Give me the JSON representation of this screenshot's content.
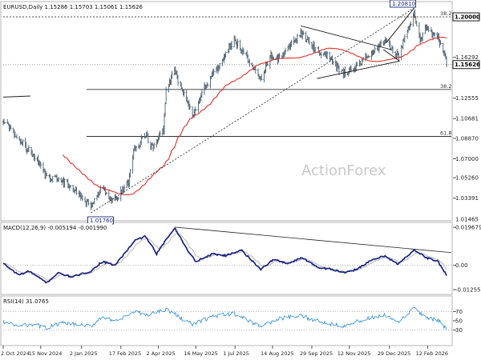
{
  "chart_data": [
    {
      "type": "ohlc",
      "title": "EURUSD,Daily  1.15286 1.15703 1.15061 1.15626",
      "watermark": "ActionForex",
      "y_ticks": [
        1.2,
        1.16292,
        1.12555,
        1.10681,
        1.0887,
        1.07,
        1.0526,
        1.03391
      ],
      "y_tick_labels": [
        "1.20000",
        "1.16292",
        "1.12555",
        "1.10681",
        "1.08870",
        "1.07000",
        "1.05260",
        "1.03391"
      ],
      "ylim": [
        1.01465,
        1.2125
      ],
      "last_price": 1.15626,
      "last_price_label": "1.15626",
      "bottom_tick_label": "1.01465",
      "price_boxes": [
        {
          "label": "1.20810",
          "value": 1.2081,
          "date": "2026-01-27"
        },
        {
          "label": "1.01760",
          "value": 1.0176,
          "date": "2025-01-13"
        }
      ],
      "fib_levels": [
        {
          "label": "38.2",
          "value": 1.2
        },
        {
          "label": "38.2",
          "value": 1.1335
        },
        {
          "label": "61.8",
          "value": 1.0905
        }
      ],
      "anchor_points": [
        {
          "date": "2024-10-02",
          "close": 1.106
        },
        {
          "date": "2024-10-20",
          "close": 1.088
        },
        {
          "date": "2024-11-10",
          "close": 1.07
        },
        {
          "date": "2024-11-20",
          "close": 1.055
        },
        {
          "date": "2024-12-10",
          "close": 1.051
        },
        {
          "date": "2024-12-28",
          "close": 1.039
        },
        {
          "date": "2025-01-13",
          "close": 1.026
        },
        {
          "date": "2025-01-26",
          "close": 1.045
        },
        {
          "date": "2025-02-03",
          "close": 1.032
        },
        {
          "date": "2025-02-10",
          "close": 1.033
        },
        {
          "date": "2025-02-26",
          "close": 1.049
        },
        {
          "date": "2025-03-05",
          "close": 1.079
        },
        {
          "date": "2025-03-18",
          "close": 1.092
        },
        {
          "date": "2025-03-27",
          "close": 1.08
        },
        {
          "date": "2025-04-08",
          "close": 1.096
        },
        {
          "date": "2025-04-11",
          "close": 1.135
        },
        {
          "date": "2025-04-21",
          "close": 1.15
        },
        {
          "date": "2025-05-01",
          "close": 1.13
        },
        {
          "date": "2025-05-12",
          "close": 1.11
        },
        {
          "date": "2025-05-26",
          "close": 1.135
        },
        {
          "date": "2025-06-12",
          "close": 1.155
        },
        {
          "date": "2025-06-30",
          "close": 1.179
        },
        {
          "date": "2025-07-10",
          "close": 1.17
        },
        {
          "date": "2025-07-31",
          "close": 1.142
        },
        {
          "date": "2025-08-12",
          "close": 1.165
        },
        {
          "date": "2025-08-22",
          "close": 1.162
        },
        {
          "date": "2025-09-16",
          "close": 1.185
        },
        {
          "date": "2025-10-01",
          "close": 1.172
        },
        {
          "date": "2025-10-16",
          "close": 1.165
        },
        {
          "date": "2025-11-05",
          "close": 1.148
        },
        {
          "date": "2025-11-20",
          "close": 1.153
        },
        {
          "date": "2025-12-01",
          "close": 1.162
        },
        {
          "date": "2025-12-24",
          "close": 1.178
        },
        {
          "date": "2026-01-08",
          "close": 1.164
        },
        {
          "date": "2026-01-27",
          "close": 1.204
        },
        {
          "date": "2026-02-03",
          "close": 1.18
        },
        {
          "date": "2026-02-10",
          "close": 1.19
        },
        {
          "date": "2026-02-16",
          "close": 1.185
        },
        {
          "date": "2026-02-24",
          "close": 1.18
        },
        {
          "date": "2026-03-02",
          "close": 1.17
        },
        {
          "date": "2026-03-06",
          "close": 1.1563
        }
      ],
      "series": [
        {
          "name": "EURUSD",
          "color": "#4a5f70"
        },
        {
          "color": "#e0302a"
        }
      ],
      "overlays": {
        "channel_color": "#111111",
        "trendline_color": "#222222"
      },
      "x_tick_labels": [
        {
          "label": "2 Oct 2024",
          "date": "2024-10-02"
        },
        {
          "label": "15 Nov 2024",
          "date": "2024-11-15"
        },
        {
          "label": "2 Jan 2025",
          "date": "2025-01-02"
        },
        {
          "label": "17 Feb 2025",
          "date": "2025-02-17"
        },
        {
          "label": "2 Apr 2025",
          "date": "2025-04-02"
        },
        {
          "label": "16 May 2025",
          "date": "2025-05-16"
        },
        {
          "label": "1 Jul 2025",
          "date": "2025-07-01"
        },
        {
          "label": "14 Aug 2025",
          "date": "2025-08-14"
        },
        {
          "label": "29 Sep 2025",
          "date": "2025-09-29"
        },
        {
          "label": "12 Nov 2025",
          "date": "2025-11-12"
        },
        {
          "label": "29 Dec 2025",
          "date": "2025-12-29"
        },
        {
          "label": "12 Feb 2026",
          "date": "2026-02-12"
        }
      ]
    },
    {
      "type": "line",
      "title": "MACD(12,26,9) -0.005194 -0.001990",
      "ylim": [
        -0.0142,
        0.0214
      ],
      "y_ticks": [
        0.019679,
        0.0,
        -0.012552
      ],
      "y_tick_labels": [
        "0.019679",
        "0.00",
        "-0.012552"
      ],
      "anchor_points": [
        {
          "date": "2024-10-02",
          "macd": 0.001
        },
        {
          "date": "2024-10-20",
          "macd": -0.005
        },
        {
          "date": "2024-11-01",
          "macd": -0.003
        },
        {
          "date": "2024-11-22",
          "macd": -0.009
        },
        {
          "date": "2024-12-05",
          "macd": -0.004
        },
        {
          "date": "2024-12-22",
          "macd": -0.006
        },
        {
          "date": "2025-01-13",
          "macd": -0.003
        },
        {
          "date": "2025-01-26",
          "macd": 0.002
        },
        {
          "date": "2025-02-10",
          "macd": 0.0
        },
        {
          "date": "2025-03-06",
          "macd": 0.013
        },
        {
          "date": "2025-03-18",
          "macd": 0.015
        },
        {
          "date": "2025-03-31",
          "macd": 0.006
        },
        {
          "date": "2025-04-21",
          "macd": 0.0196
        },
        {
          "date": "2025-05-06",
          "macd": 0.008
        },
        {
          "date": "2025-05-16",
          "macd": 0.002
        },
        {
          "date": "2025-06-05",
          "macd": 0.006
        },
        {
          "date": "2025-06-20",
          "macd": 0.005
        },
        {
          "date": "2025-07-08",
          "macd": 0.008
        },
        {
          "date": "2025-07-31",
          "macd": -0.002
        },
        {
          "date": "2025-08-15",
          "macd": 0.003
        },
        {
          "date": "2025-09-01",
          "macd": 0.001
        },
        {
          "date": "2025-09-18",
          "macd": 0.004
        },
        {
          "date": "2025-10-06",
          "macd": -0.001
        },
        {
          "date": "2025-10-22",
          "macd": -0.002
        },
        {
          "date": "2025-11-07",
          "macd": -0.004
        },
        {
          "date": "2025-11-20",
          "macd": -0.002
        },
        {
          "date": "2025-12-10",
          "macd": 0.003
        },
        {
          "date": "2025-12-24",
          "macd": 0.005
        },
        {
          "date": "2026-01-08",
          "macd": 0.0005
        },
        {
          "date": "2026-01-27",
          "macd": 0.008
        },
        {
          "date": "2026-02-10",
          "macd": 0.004
        },
        {
          "date": "2026-02-24",
          "macd": 0.002
        },
        {
          "date": "2026-03-06",
          "macd": -0.0052
        }
      ],
      "series": [
        {
          "color": "#1a237e"
        },
        {
          "color": "#b0b0b0"
        }
      ],
      "overlays": {
        "trendline_color": "#222222"
      }
    },
    {
      "type": "line",
      "title": "RSI(14) 31.0765",
      "ylim": [
        0,
        100
      ],
      "y_ticks": [
        70,
        50,
        30
      ],
      "y_tick_labels": [
        "70",
        "50",
        "30"
      ],
      "anchor_points": [
        {
          "date": "2024-10-02",
          "rsi": 48
        },
        {
          "date": "2024-10-20",
          "rsi": 38
        },
        {
          "date": "2024-11-05",
          "rsi": 43
        },
        {
          "date": "2024-11-22",
          "rsi": 35
        },
        {
          "date": "2024-12-10",
          "rsi": 45
        },
        {
          "date": "2025-01-13",
          "rsi": 38
        },
        {
          "date": "2025-01-26",
          "rsi": 60
        },
        {
          "date": "2025-02-10",
          "rsi": 47
        },
        {
          "date": "2025-03-06",
          "rsi": 70
        },
        {
          "date": "2025-03-18",
          "rsi": 62
        },
        {
          "date": "2025-04-11",
          "rsi": 75
        },
        {
          "date": "2025-05-12",
          "rsi": 42
        },
        {
          "date": "2025-06-05",
          "rsi": 60
        },
        {
          "date": "2025-06-30",
          "rsi": 65
        },
        {
          "date": "2025-07-31",
          "rsi": 38
        },
        {
          "date": "2025-08-22",
          "rsi": 55
        },
        {
          "date": "2025-09-16",
          "rsi": 60
        },
        {
          "date": "2025-10-16",
          "rsi": 45
        },
        {
          "date": "2025-11-05",
          "rsi": 40
        },
        {
          "date": "2025-12-05",
          "rsi": 55
        },
        {
          "date": "2025-12-24",
          "rsi": 62
        },
        {
          "date": "2026-01-08",
          "rsi": 45
        },
        {
          "date": "2026-01-27",
          "rsi": 78
        },
        {
          "date": "2026-02-10",
          "rsi": 55
        },
        {
          "date": "2026-02-24",
          "rsi": 52
        },
        {
          "date": "2026-03-06",
          "rsi": 31.0765
        }
      ],
      "series": [
        {
          "color": "#2e8bd6"
        }
      ]
    }
  ]
}
